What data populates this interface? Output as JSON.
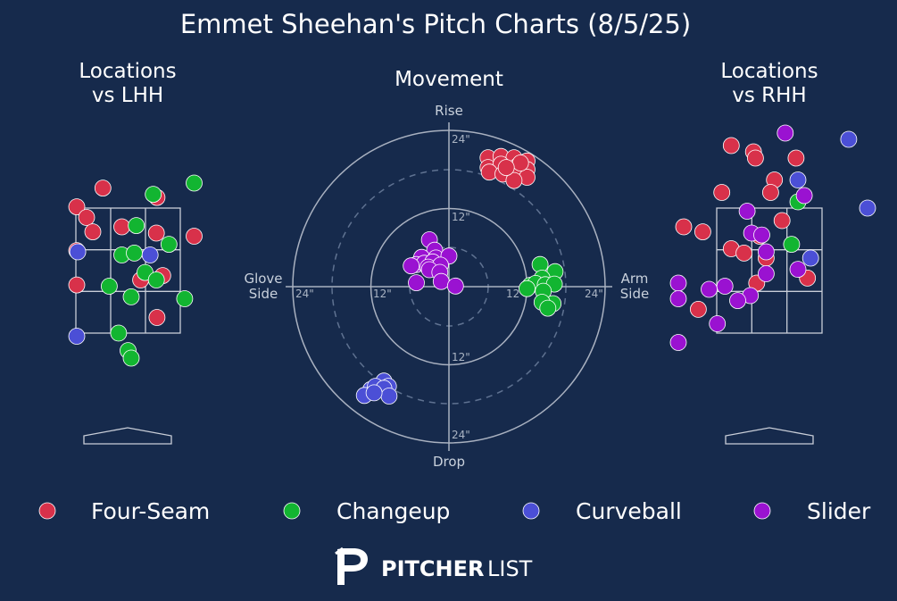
{
  "chart_data": {
    "title": "Emmet Sheehan's Pitch Charts (8/5/25)",
    "type": "scatter",
    "pitch_types": [
      {
        "name": "Four-Seam",
        "color": "#d8314a"
      },
      {
        "name": "Changeup",
        "color": "#12b531"
      },
      {
        "name": "Curveball",
        "color": "#4b4fd6"
      },
      {
        "name": "Slider",
        "color": "#9a12d1"
      }
    ],
    "locations_lhh": {
      "title_line1": "Locations",
      "title_line2": "vs LHH",
      "x_range_ft": [
        -1.85,
        1.85
      ],
      "y_range_ft": [
        0.3,
        4.5
      ],
      "pitches": [
        {
          "type": "Four-Seam",
          "x": -0.4,
          "z": 3.82
        },
        {
          "type": "Four-Seam",
          "x": -0.85,
          "z": 3.52
        },
        {
          "type": "Four-Seam",
          "x": -0.66,
          "z": 3.35
        },
        {
          "type": "Four-Seam",
          "x": -0.56,
          "z": 3.12
        },
        {
          "type": "Four-Seam",
          "x": -0.1,
          "z": 3.2
        },
        {
          "type": "Four-Seam",
          "x": 0.46,
          "z": 3.67
        },
        {
          "type": "Four-Seam",
          "x": 0.45,
          "z": 3.1
        },
        {
          "type": "Four-Seam",
          "x": 1.05,
          "z": 3.05
        },
        {
          "type": "Four-Seam",
          "x": -0.85,
          "z": 2.82
        },
        {
          "type": "Four-Seam",
          "x": 0.55,
          "z": 2.42
        },
        {
          "type": "Four-Seam",
          "x": 0.2,
          "z": 2.35
        },
        {
          "type": "Four-Seam",
          "x": -1.45,
          "z": 2.27
        },
        {
          "type": "Four-Seam",
          "x": 0.46,
          "z": 1.75
        },
        {
          "type": "Changeup",
          "x": 0.4,
          "z": 3.72
        },
        {
          "type": "Changeup",
          "x": 1.05,
          "z": 3.9
        },
        {
          "type": "Changeup",
          "x": 0.13,
          "z": 3.22
        },
        {
          "type": "Changeup",
          "x": 0.65,
          "z": 2.92
        },
        {
          "type": "Changeup",
          "x": -0.1,
          "z": 2.75
        },
        {
          "type": "Changeup",
          "x": 0.1,
          "z": 2.78
        },
        {
          "type": "Changeup",
          "x": 0.27,
          "z": 2.47
        },
        {
          "type": "Changeup",
          "x": 0.45,
          "z": 2.35
        },
        {
          "type": "Changeup",
          "x": -0.3,
          "z": 2.25
        },
        {
          "type": "Changeup",
          "x": 0.05,
          "z": 2.08
        },
        {
          "type": "Changeup",
          "x": 0.9,
          "z": 2.05
        },
        {
          "type": "Changeup",
          "x": -0.15,
          "z": 1.5
        },
        {
          "type": "Changeup",
          "x": 0.0,
          "z": 1.22
        },
        {
          "type": "Changeup",
          "x": 0.05,
          "z": 1.1
        },
        {
          "type": "Curveball",
          "x": -0.8,
          "z": 2.8
        },
        {
          "type": "Curveball",
          "x": 0.35,
          "z": 2.75
        },
        {
          "type": "Curveball",
          "x": -0.9,
          "z": 1.45
        }
      ]
    },
    "movement": {
      "title": "Movement",
      "label_top": "Rise",
      "label_bottom": "Drop",
      "label_left_line1": "Glove",
      "label_left_line2": "Side",
      "label_right_line1": "Arm",
      "label_right_line2": "Side",
      "ring_labels": {
        "top_24": "24\"",
        "top_12": "12\"",
        "bottom_12": "12\"",
        "bottom_24": "24\"",
        "left_24": "24\"",
        "left_12": "12\"",
        "right_12": "12\"",
        "right_24": "24\""
      },
      "range_in": [
        -24,
        24
      ],
      "pitches": [
        {
          "type": "Four-Seam",
          "x": 6.0,
          "y": 19.8
        },
        {
          "type": "Four-Seam",
          "x": 8.0,
          "y": 20.0
        },
        {
          "type": "Four-Seam",
          "x": 10.0,
          "y": 19.8
        },
        {
          "type": "Four-Seam",
          "x": 12.0,
          "y": 19.3
        },
        {
          "type": "Four-Seam",
          "x": 6.0,
          "y": 18.3
        },
        {
          "type": "Four-Seam",
          "x": 8.0,
          "y": 18.8
        },
        {
          "type": "Four-Seam",
          "x": 10.5,
          "y": 18.5
        },
        {
          "type": "Four-Seam",
          "x": 12.0,
          "y": 18.0
        },
        {
          "type": "Four-Seam",
          "x": 6.2,
          "y": 17.6
        },
        {
          "type": "Four-Seam",
          "x": 8.3,
          "y": 17.3
        },
        {
          "type": "Four-Seam",
          "x": 10.0,
          "y": 17.5
        },
        {
          "type": "Four-Seam",
          "x": 12.0,
          "y": 16.8
        },
        {
          "type": "Four-Seam",
          "x": 10.0,
          "y": 16.3
        },
        {
          "type": "Four-Seam",
          "x": 11.0,
          "y": 19.0
        },
        {
          "type": "Four-Seam",
          "x": 8.8,
          "y": 18.3
        },
        {
          "type": "Changeup",
          "x": 14.0,
          "y": 3.4
        },
        {
          "type": "Changeup",
          "x": 16.3,
          "y": 2.3
        },
        {
          "type": "Changeup",
          "x": 14.3,
          "y": 1.3
        },
        {
          "type": "Changeup",
          "x": 12.5,
          "y": 0.2
        },
        {
          "type": "Changeup",
          "x": 13.3,
          "y": 0.5
        },
        {
          "type": "Changeup",
          "x": 14.8,
          "y": 0.3
        },
        {
          "type": "Changeup",
          "x": 16.2,
          "y": 0.4
        },
        {
          "type": "Changeup",
          "x": 12.0,
          "y": -0.3
        },
        {
          "type": "Changeup",
          "x": 14.5,
          "y": -0.7
        },
        {
          "type": "Changeup",
          "x": 16.0,
          "y": -2.6
        },
        {
          "type": "Changeup",
          "x": 14.3,
          "y": -2.4
        },
        {
          "type": "Changeup",
          "x": 15.2,
          "y": -3.3
        },
        {
          "type": "Slider",
          "x": -3.0,
          "y": 7.2
        },
        {
          "type": "Slider",
          "x": -2.2,
          "y": 5.6
        },
        {
          "type": "Slider",
          "x": -4.2,
          "y": 4.5
        },
        {
          "type": "Slider",
          "x": -2.0,
          "y": 4.4
        },
        {
          "type": "Slider",
          "x": -5.0,
          "y": 3.4
        },
        {
          "type": "Slider",
          "x": -3.8,
          "y": 3.6
        },
        {
          "type": "Slider",
          "x": -2.5,
          "y": 3.8
        },
        {
          "type": "Slider",
          "x": 0.0,
          "y": 4.7
        },
        {
          "type": "Slider",
          "x": -3.2,
          "y": 3.0
        },
        {
          "type": "Slider",
          "x": -1.3,
          "y": 3.3
        },
        {
          "type": "Slider",
          "x": -5.8,
          "y": 3.2
        },
        {
          "type": "Slider",
          "x": -3.0,
          "y": 2.6
        },
        {
          "type": "Slider",
          "x": -1.4,
          "y": 2.2
        },
        {
          "type": "Slider",
          "x": -5.0,
          "y": 0.6
        },
        {
          "type": "Slider",
          "x": -1.2,
          "y": 0.8
        },
        {
          "type": "Slider",
          "x": 1.0,
          "y": 0.1
        },
        {
          "type": "Curveball",
          "x": -10.0,
          "y": -14.5
        },
        {
          "type": "Curveball",
          "x": -9.3,
          "y": -15.3
        },
        {
          "type": "Curveball",
          "x": -12.0,
          "y": -15.8
        },
        {
          "type": "Curveball",
          "x": -11.3,
          "y": -15.3
        },
        {
          "type": "Curveball",
          "x": -10.0,
          "y": -15.6
        },
        {
          "type": "Curveball",
          "x": -13.0,
          "y": -16.7
        },
        {
          "type": "Curveball",
          "x": -9.2,
          "y": -16.8
        },
        {
          "type": "Curveball",
          "x": -11.5,
          "y": -16.3
        }
      ]
    },
    "locations_rhh": {
      "title_line1": "Locations",
      "title_line2": "vs RHH",
      "x_range_ft": [
        -1.85,
        1.85
      ],
      "y_range_ft": [
        0.3,
        4.5
      ],
      "pitches": [
        {
          "type": "Four-Seam",
          "x": -0.6,
          "z": 4.5
        },
        {
          "type": "Four-Seam",
          "x": -0.25,
          "z": 4.4
        },
        {
          "type": "Four-Seam",
          "x": -0.22,
          "z": 4.3
        },
        {
          "type": "Four-Seam",
          "x": 0.42,
          "z": 4.3
        },
        {
          "type": "Four-Seam",
          "x": 0.08,
          "z": 3.95
        },
        {
          "type": "Four-Seam",
          "x": -0.75,
          "z": 3.75
        },
        {
          "type": "Four-Seam",
          "x": 0.02,
          "z": 3.75
        },
        {
          "type": "Four-Seam",
          "x": 0.2,
          "z": 3.3
        },
        {
          "type": "Four-Seam",
          "x": -1.35,
          "z": 3.2
        },
        {
          "type": "Four-Seam",
          "x": -1.05,
          "z": 3.12
        },
        {
          "type": "Four-Seam",
          "x": -0.15,
          "z": 3.05
        },
        {
          "type": "Four-Seam",
          "x": -0.6,
          "z": 2.85
        },
        {
          "type": "Four-Seam",
          "x": -0.4,
          "z": 2.78
        },
        {
          "type": "Four-Seam",
          "x": -0.05,
          "z": 2.7
        },
        {
          "type": "Four-Seam",
          "x": 0.6,
          "z": 2.38
        },
        {
          "type": "Four-Seam",
          "x": -0.2,
          "z": 2.3
        },
        {
          "type": "Four-Seam",
          "x": -1.12,
          "z": 1.88
        },
        {
          "type": "Changeup",
          "x": 0.45,
          "z": 3.6
        },
        {
          "type": "Changeup",
          "x": 0.35,
          "z": 2.92
        },
        {
          "type": "Curveball",
          "x": 1.25,
          "z": 4.6
        },
        {
          "type": "Curveball",
          "x": 0.45,
          "z": 3.95
        },
        {
          "type": "Curveball",
          "x": 0.65,
          "z": 2.7
        },
        {
          "type": "Curveball",
          "x": 1.65,
          "z": 3.5
        },
        {
          "type": "Slider",
          "x": 0.25,
          "z": 4.7
        },
        {
          "type": "Slider",
          "x": 0.55,
          "z": 3.7
        },
        {
          "type": "Slider",
          "x": -0.35,
          "z": 3.45
        },
        {
          "type": "Slider",
          "x": -0.28,
          "z": 3.1
        },
        {
          "type": "Slider",
          "x": -0.12,
          "z": 3.07
        },
        {
          "type": "Slider",
          "x": -0.05,
          "z": 2.8
        },
        {
          "type": "Slider",
          "x": 0.45,
          "z": 2.52
        },
        {
          "type": "Slider",
          "x": -0.05,
          "z": 2.45
        },
        {
          "type": "Slider",
          "x": -0.7,
          "z": 2.25
        },
        {
          "type": "Slider",
          "x": -0.95,
          "z": 2.2
        },
        {
          "type": "Slider",
          "x": -0.3,
          "z": 2.1
        },
        {
          "type": "Slider",
          "x": -0.5,
          "z": 2.02
        },
        {
          "type": "Slider",
          "x": -1.85,
          "z": 2.3
        },
        {
          "type": "Slider",
          "x": -1.85,
          "z": 2.05
        },
        {
          "type": "Slider",
          "x": -0.82,
          "z": 1.65
        },
        {
          "type": "Slider",
          "x": -1.85,
          "z": 1.35
        }
      ]
    }
  },
  "legend": {
    "items": [
      {
        "label": "Four-Seam",
        "color": "#d8314a"
      },
      {
        "label": "Changeup",
        "color": "#12b531"
      },
      {
        "label": "Curveball",
        "color": "#4b4fd6"
      },
      {
        "label": "Slider",
        "color": "#9a12d1"
      }
    ]
  },
  "brand": {
    "bold": "PITCHER",
    "light": "LIST",
    "icon": "pitcherlist-logo-icon"
  }
}
